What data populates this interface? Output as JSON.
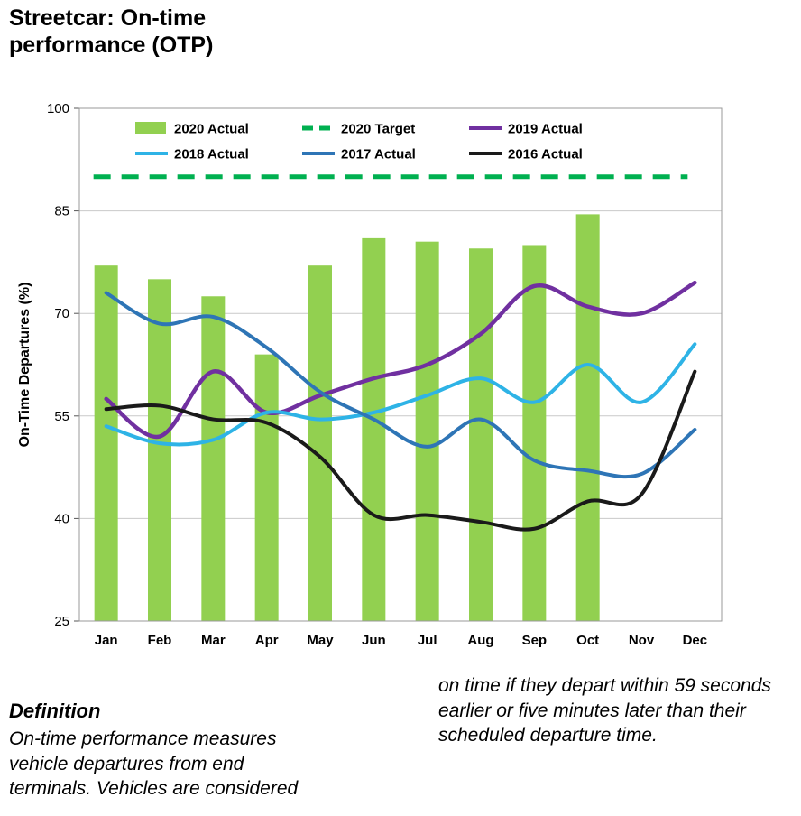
{
  "page": {
    "title": "Streetcar: On-time performance (OTP)"
  },
  "chart_data": {
    "type": "combo",
    "title": "",
    "ylabel": "On-Time Departures (%)",
    "ylim": [
      25,
      100
    ],
    "yticks": [
      25,
      40,
      55,
      70,
      85,
      100
    ],
    "grid": true,
    "legend_position": "top",
    "categories": [
      "Jan",
      "Feb",
      "Mar",
      "Apr",
      "May",
      "Jun",
      "Jul",
      "Aug",
      "Sep",
      "Oct",
      "Nov",
      "Dec"
    ],
    "series": [
      {
        "name": "2020 Actual",
        "type": "bar",
        "color": "#92d050",
        "values": [
          77,
          75,
          72.5,
          64,
          77,
          81,
          80.5,
          79.5,
          80,
          84.5,
          null,
          null
        ]
      },
      {
        "name": "2020 Target",
        "type": "dashed-line",
        "color": "#00b050",
        "values": [
          90,
          90,
          90,
          90,
          90,
          90,
          90,
          90,
          90,
          90,
          90,
          90
        ]
      },
      {
        "name": "2019 Actual",
        "type": "line",
        "color": "#7030a0",
        "values": [
          57.5,
          52,
          61.5,
          55.5,
          58,
          60.5,
          62.5,
          67,
          74,
          71,
          70,
          74.5
        ]
      },
      {
        "name": "2018 Actual",
        "type": "line",
        "color": "#2eb3e6",
        "values": [
          53.5,
          51,
          51.5,
          55.5,
          54.5,
          55.5,
          58,
          60.5,
          57,
          62.5,
          57,
          65.5
        ]
      },
      {
        "name": "2017 Actual",
        "type": "line",
        "color": "#2e75b6",
        "values": [
          73,
          68.5,
          69.5,
          65,
          58.5,
          54.5,
          50.5,
          54.5,
          48.5,
          47,
          46.5,
          53
        ]
      },
      {
        "name": "2016 Actual",
        "type": "line",
        "color": "#1a1a1a",
        "values": [
          56,
          56.5,
          54.5,
          54,
          49,
          40.5,
          40.5,
          39.5,
          38.5,
          42.5,
          43.5,
          61.5
        ]
      }
    ]
  },
  "footer": {
    "definition_heading": "Definition",
    "left_text": "On-time performance measures vehicle departures from end terminals. Vehicles are considered",
    "right_text": "on time if they depart within 59 seconds earlier or five minutes later than their scheduled departure time."
  }
}
